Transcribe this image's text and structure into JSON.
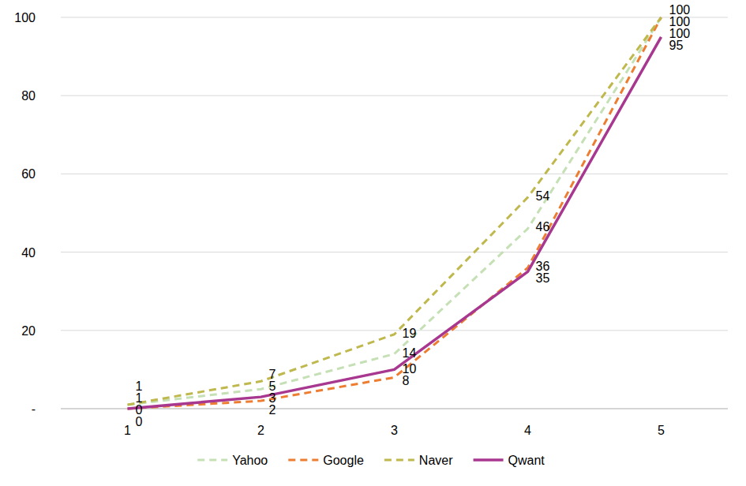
{
  "chart_data": {
    "type": "line",
    "categories": [
      "1",
      "2",
      "3",
      "4",
      "5"
    ],
    "series": [
      {
        "name": "Yahoo",
        "color": "#c5e0b4",
        "line_style": "dashed",
        "values": [
          1,
          5,
          14,
          46,
          100
        ]
      },
      {
        "name": "Google",
        "color": "#ed7d31",
        "line_style": "dashed",
        "values": [
          0,
          2,
          8,
          36,
          100
        ]
      },
      {
        "name": "Naver",
        "color": "#bfb84d",
        "line_style": "dashed",
        "values": [
          1,
          7,
          19,
          54,
          100
        ]
      },
      {
        "name": "Qwant",
        "color": "#a8378f",
        "line_style": "solid",
        "values": [
          0,
          3,
          10,
          35,
          95
        ]
      }
    ],
    "ylim": [
      0,
      100
    ],
    "yticks": [
      {
        "value": 0,
        "label": "-"
      },
      20,
      40,
      60,
      80,
      100
    ],
    "grid": true,
    "legend": "bottom",
    "data_labels": true
  }
}
